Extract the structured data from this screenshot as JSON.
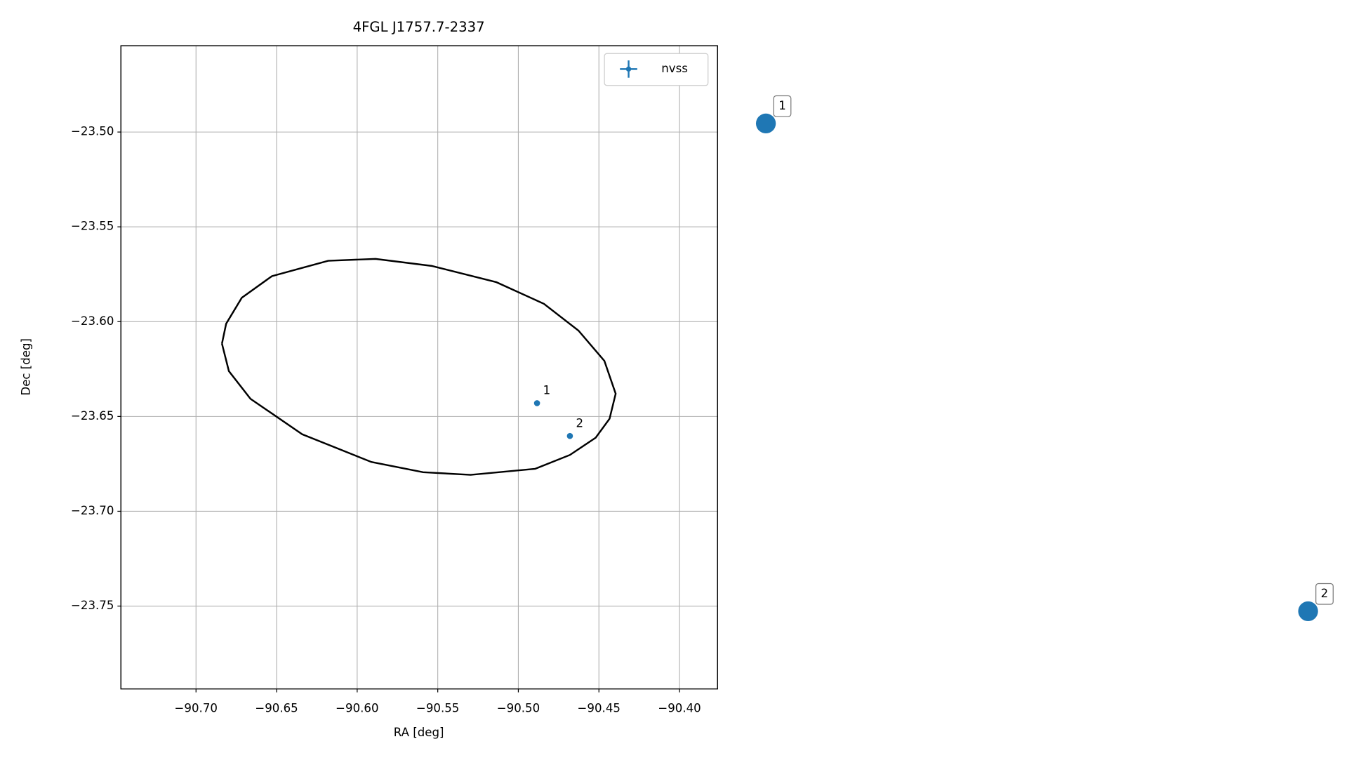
{
  "chart_data": {
    "type": "scatter",
    "title": "4FGL J1757.7-2337",
    "x_label": "RA [deg]",
    "y_label": "Dec [deg]",
    "xlim": [
      -90.7466,
      -90.3764
    ],
    "ylim": [
      -23.7937,
      -23.4545
    ],
    "xticks": [
      {
        "value": -90.7,
        "label": "−90.70"
      },
      {
        "value": -90.65,
        "label": "−90.65"
      },
      {
        "value": -90.6,
        "label": "−90.60"
      },
      {
        "value": -90.55,
        "label": "−90.55"
      },
      {
        "value": -90.5,
        "label": "−90.50"
      },
      {
        "value": -90.45,
        "label": "−90.45"
      },
      {
        "value": -90.4,
        "label": "−90.40"
      }
    ],
    "yticks": [
      {
        "value": -23.5,
        "label": "−23.50"
      },
      {
        "value": -23.55,
        "label": "−23.55"
      },
      {
        "value": -23.6,
        "label": "−23.60"
      },
      {
        "value": -23.65,
        "label": "−23.65"
      },
      {
        "value": -23.7,
        "label": "−23.70"
      },
      {
        "value": -23.75,
        "label": "−23.75"
      }
    ],
    "grid": true,
    "legend": "upper right",
    "series": [
      {
        "name": "nvss",
        "color": "#1f77b4",
        "x": [
          -90.4884,
          -90.468
        ],
        "y": [
          -23.643,
          -23.6603
        ],
        "labels": [
          "1",
          "2"
        ]
      }
    ],
    "ellipse": {
      "color": "#000000",
      "x": [
        -90.6839,
        -90.6813,
        -90.6716,
        -90.6529,
        -90.618,
        -90.5886,
        -90.5538,
        -90.5136,
        -90.4841,
        -90.4627,
        -90.4466,
        -90.4396,
        -90.4434,
        -90.452,
        -90.468,
        -90.4895,
        -90.5296,
        -90.5591,
        -90.5912,
        -90.6341,
        -90.6662,
        -90.6796,
        -90.6839
      ],
      "y": [
        -23.6116,
        -23.6011,
        -23.5874,
        -23.576,
        -23.5679,
        -23.5669,
        -23.5706,
        -23.5792,
        -23.5906,
        -23.6047,
        -23.6207,
        -23.638,
        -23.6512,
        -23.6612,
        -23.6703,
        -23.6776,
        -23.6808,
        -23.6794,
        -23.674,
        -23.6594,
        -23.6407,
        -23.6261,
        -23.6116
      ]
    },
    "outer_labels": [
      "1",
      "2"
    ]
  }
}
